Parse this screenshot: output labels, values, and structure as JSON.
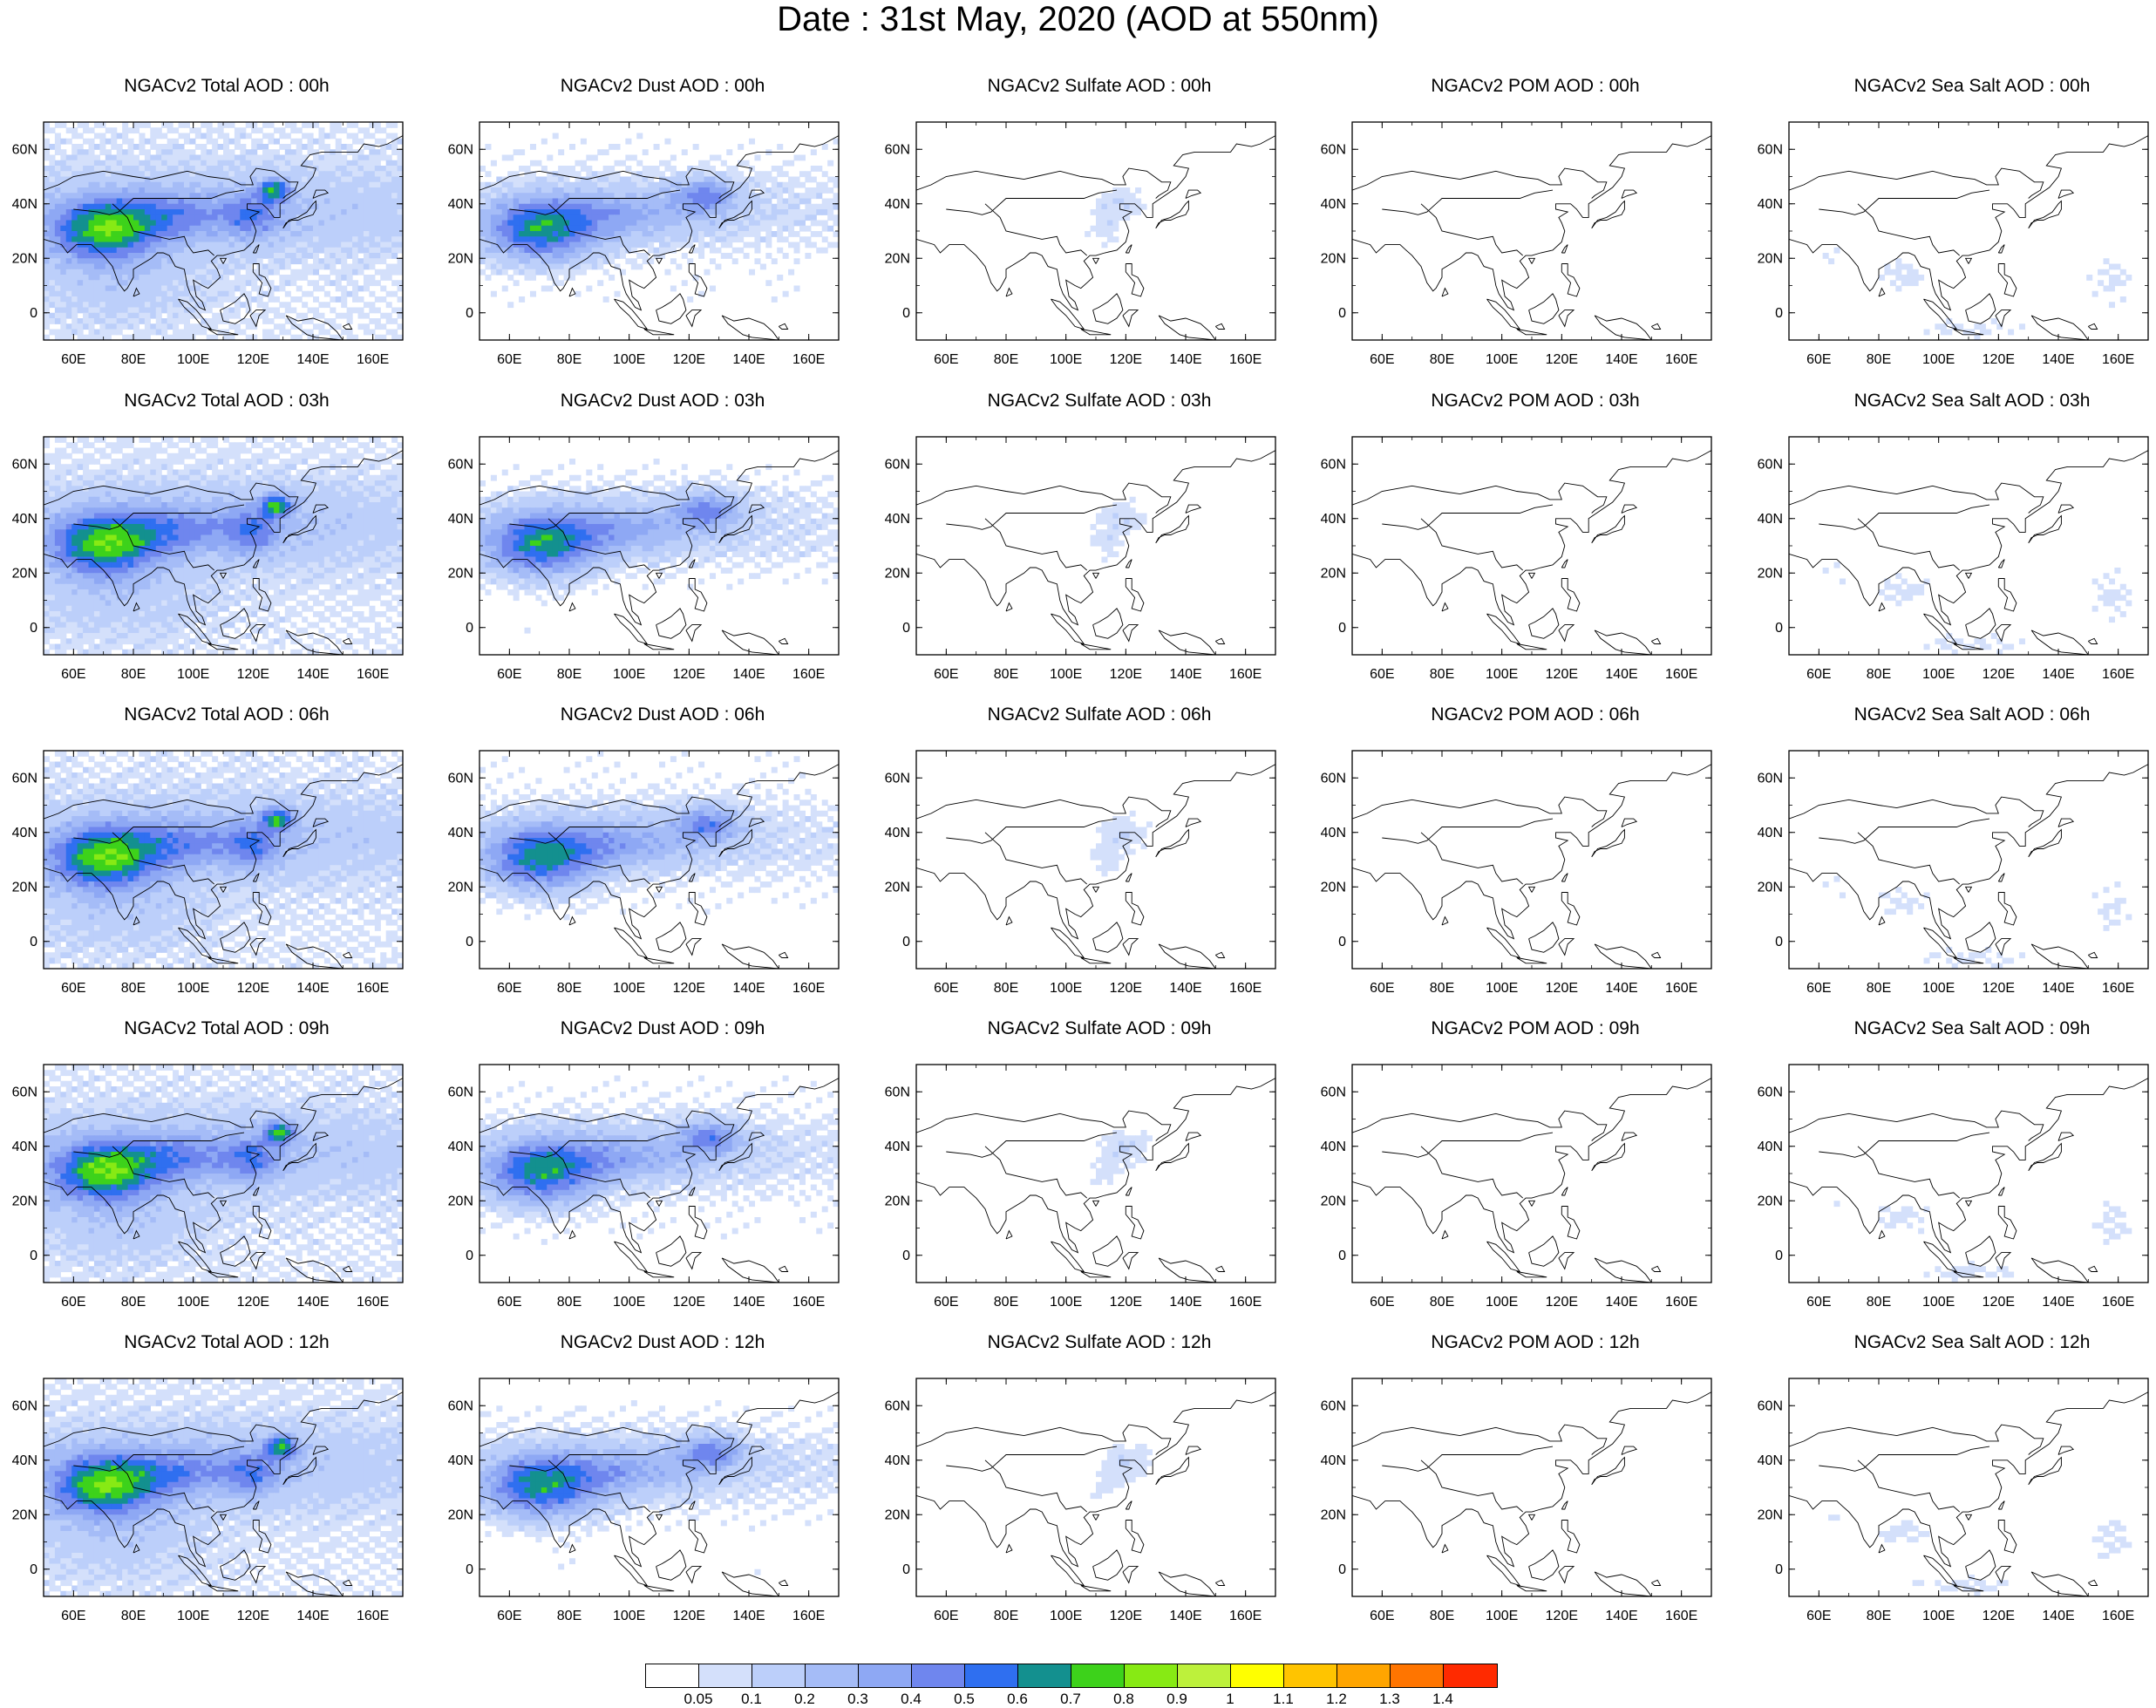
{
  "figure": {
    "title": "Date : 31st May, 2020 (AOD at 550nm)"
  },
  "axes": {
    "lat_ticks": [
      "60N",
      "40N",
      "20N",
      "0"
    ],
    "lon_ticks": [
      "60E",
      "80E",
      "100E",
      "120E",
      "140E",
      "160E"
    ],
    "lat_range": [
      -10,
      70
    ],
    "lon_range": [
      50,
      170
    ]
  },
  "species": [
    "total",
    "dust",
    "sulfate",
    "pom",
    "seasalt"
  ],
  "hours": [
    "00h",
    "03h",
    "06h",
    "09h",
    "12h"
  ],
  "panel_titles": [
    [
      "NGACv2 Total AOD : 00h",
      "NGACv2 Dust AOD : 00h",
      "NGACv2 Sulfate AOD : 00h",
      "NGACv2 POM AOD : 00h",
      "NGACv2 Sea Salt AOD : 00h"
    ],
    [
      "NGACv2 Total AOD : 03h",
      "NGACv2 Dust AOD : 03h",
      "NGACv2 Sulfate AOD : 03h",
      "NGACv2 POM AOD : 03h",
      "NGACv2 Sea Salt AOD : 03h"
    ],
    [
      "NGACv2 Total AOD : 06h",
      "NGACv2 Dust AOD : 06h",
      "NGACv2 Sulfate AOD : 06h",
      "NGACv2 POM AOD : 06h",
      "NGACv2 Sea Salt AOD : 06h"
    ],
    [
      "NGACv2 Total AOD : 09h",
      "NGACv2 Dust AOD : 09h",
      "NGACv2 Sulfate AOD : 09h",
      "NGACv2 POM AOD : 09h",
      "NGACv2 Sea Salt  AOD : 09h"
    ],
    [
      "NGACv2 Total AOD  : 12h",
      "NGACv2 Dust AOD : 12h",
      "NGACv2 Sulfate AOD : 12h",
      "NGACv2 POM  AOD : 12h",
      "NGACv2 Sea Salt  AOD : 12h"
    ]
  ],
  "colorbar": {
    "labels": [
      "0.05",
      "0.1",
      "0.2",
      "0.3",
      "0.4",
      "0.5",
      "0.6",
      "0.7",
      "0.8",
      "0.9",
      "1",
      "1.1",
      "1.2",
      "1.3",
      "1.4"
    ],
    "colors": [
      "#ffffff",
      "#d4e0fb",
      "#bccffa",
      "#a5bcf7",
      "#8ea8f4",
      "#6f86ee",
      "#2f6ff0",
      "#13908f",
      "#3dd21b",
      "#87ea14",
      "#bdf13b",
      "#ffff00",
      "#ffc400",
      "#ffa500",
      "#ff7500",
      "#ff2a00"
    ]
  }
}
